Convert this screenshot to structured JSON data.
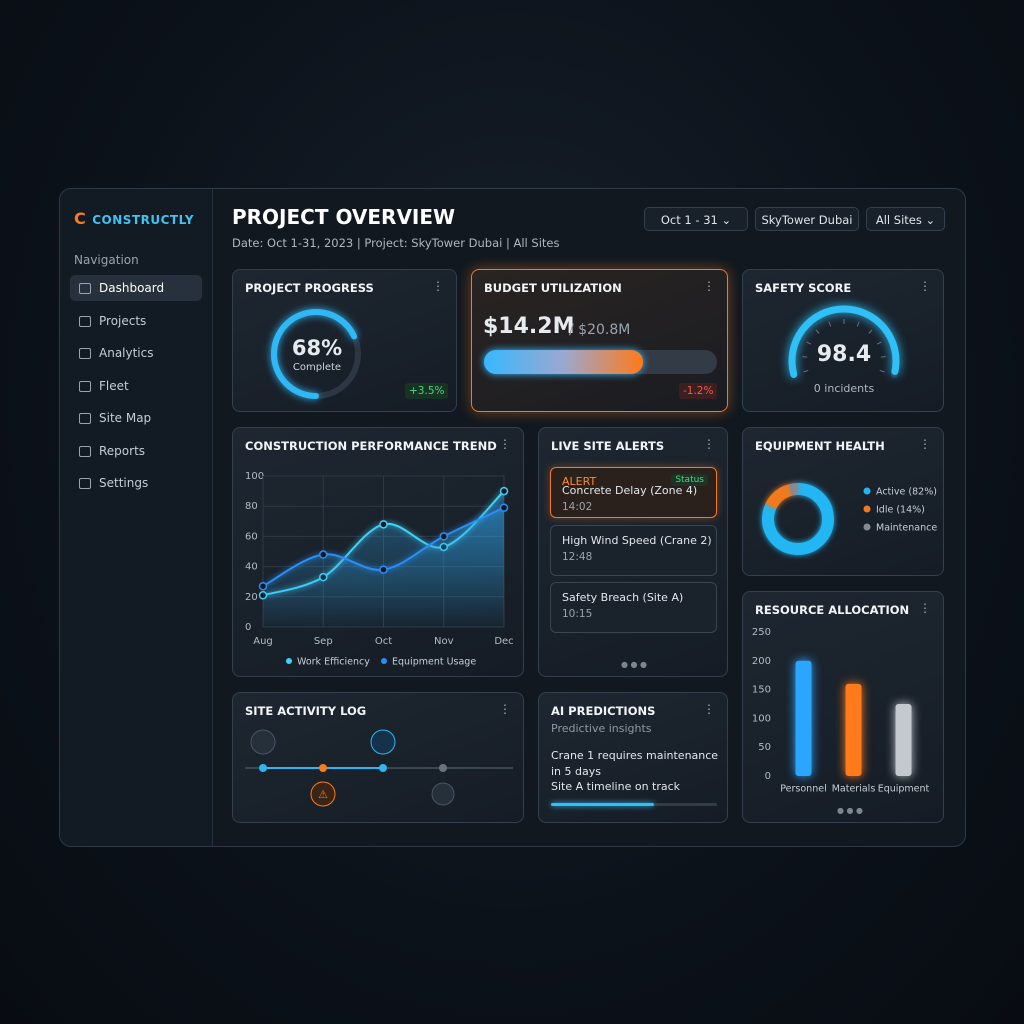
{
  "sidebar": {
    "brand": "CONSTRUCTLY",
    "heading": "Navigation",
    "items": [
      "Dashboard",
      "Projects",
      "Analytics",
      "Fleet",
      "Site Map",
      "Reports",
      "Settings"
    ]
  },
  "header": {
    "title": "PROJECT OVERVIEW",
    "subtitle": "Date: Oct 1-31, 2023 | Project: SkyTower Dubai | All Sites",
    "filters": [
      "Oct 1 - 31",
      "SkyTower Dubai",
      "All Sites"
    ]
  },
  "progress": {
    "title": "PROJECT PROGRESS",
    "value": 68,
    "value_label": "68%",
    "caption": "Complete",
    "delta": "+3.5%"
  },
  "budget": {
    "title": "BUDGET UTILIZATION",
    "spent": 14.2,
    "spent_label": "$14.2M",
    "total": 20.8,
    "total_label": "/ $20.8M",
    "delta": "-1.2%"
  },
  "safety": {
    "title": "SAFETY SCORE",
    "score": 98.4,
    "caption": "0 incidents"
  },
  "trend": {
    "type": "line",
    "title": "CONSTRUCTION PERFORMANCE TREND",
    "categories": [
      "Aug",
      "Sep",
      "Oct",
      "Nov",
      "Dec"
    ],
    "series": [
      {
        "name": "Work Efficiency",
        "color": "#3fd2f7",
        "values": [
          21,
          33,
          68,
          53,
          90
        ]
      },
      {
        "name": "Equipment Usage",
        "color": "#2b8ef2",
        "values": [
          27,
          48,
          38,
          60,
          79
        ]
      }
    ],
    "ylim": [
      0,
      100
    ],
    "yticks": [
      0,
      20,
      40,
      60,
      80,
      100
    ],
    "grid": true
  },
  "alerts": {
    "title": "LIVE SITE ALERTS",
    "items": [
      {
        "tag": "ALERT",
        "status": "Status",
        "text": "Concrete Delay (Zone 4)",
        "time": "14:02"
      },
      {
        "text": "High Wind Speed (Crane 2)",
        "time": "12:48"
      },
      {
        "text": "Safety Breach (Site A)",
        "time": "10:15"
      }
    ]
  },
  "equipment": {
    "type": "donut",
    "title": "EQUIPMENT HEALTH",
    "categories": [
      "Active (82%)",
      "Idle (14%)",
      "Maintenance"
    ],
    "values": [
      82,
      14,
      4
    ],
    "colors": [
      "#22b6f2",
      "#f07a1e",
      "#858b93"
    ]
  },
  "resources": {
    "type": "bar",
    "title": "RESOURCE ALLOCATION",
    "categories": [
      "Personnel",
      "Materials",
      "Equipment"
    ],
    "values": [
      200,
      160,
      125
    ],
    "colors": [
      "#2aa6ff",
      "#ff7a1a",
      "#c4c9cf"
    ],
    "ylim": [
      0,
      250
    ],
    "yticks": [
      0,
      50,
      100,
      150,
      200,
      250
    ]
  },
  "activity": {
    "title": "SITE ACTIVITY LOG"
  },
  "predictions": {
    "title": "AI PREDICTIONS",
    "subtitle": "Predictive insights",
    "lines": [
      "Crane 1 requires maintenance in 5 days",
      "Site A timeline on track"
    ],
    "progress": 62
  }
}
